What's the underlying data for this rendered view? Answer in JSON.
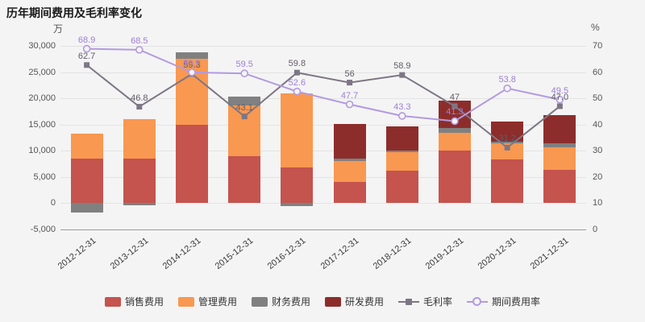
{
  "chart_data": {
    "type": "stacked-bar+line",
    "title": "历年期间费用及毛利率变化",
    "categories": [
      "2012-12-31",
      "2013-12-31",
      "2014-12-31",
      "2015-12-31",
      "2016-12-31",
      "2017-12-31",
      "2018-12-31",
      "2019-12-31",
      "2020-12-31",
      "2021-12-31"
    ],
    "left_axis": {
      "unit": "万",
      "min": -5000,
      "max": 30000,
      "ticks": [
        "30,000",
        "25,000",
        "20,000",
        "15,000",
        "10,000",
        "5,000",
        "0",
        "-5,000"
      ]
    },
    "right_axis": {
      "unit": "%",
      "min": 0,
      "max": 70,
      "ticks": [
        "70",
        "60",
        "50",
        "40",
        "30",
        "20",
        "10",
        "0"
      ]
    },
    "bar_series": [
      {
        "name": "销售费用",
        "color": "#c5534e",
        "values": [
          8500,
          8500,
          15000,
          9000,
          6800,
          4000,
          6200,
          10000,
          8400,
          6300
        ]
      },
      {
        "name": "管理费用",
        "color": "#f99850",
        "values": [
          4800,
          7500,
          12600,
          9700,
          14200,
          4100,
          3600,
          3400,
          3000,
          4300
        ]
      },
      {
        "name": "财务费用",
        "color": "#808080",
        "values": [
          -1800,
          -400,
          1200,
          1700,
          -600,
          400,
          200,
          900,
          400,
          900
        ]
      },
      {
        "name": "研发费用",
        "color": "#8d2d2b",
        "values": [
          0,
          0,
          0,
          0,
          0,
          6600,
          4700,
          5200,
          3700,
          5300
        ]
      }
    ],
    "line_series": [
      {
        "name": "毛利率",
        "marker": "square",
        "color": "#7d7684",
        "label_color": "#625c68",
        "values": [
          62.7,
          46.8,
          59.3,
          43.1,
          59.8,
          56,
          58.9,
          47,
          31.2,
          47
        ],
        "labels": [
          "62.7",
          "46.8",
          "59.3",
          "43.1",
          "59.8",
          "56",
          "58.9",
          "47",
          "31.2",
          "47.0"
        ]
      },
      {
        "name": "期间费用率",
        "marker": "circle",
        "color": "#b29ae0",
        "label_color": "#9d7fd6",
        "values": [
          68.9,
          68.5,
          59.9,
          59.5,
          52.6,
          47.7,
          43.3,
          41.3,
          53.8,
          49.5
        ],
        "labels": [
          "68.9",
          "68.5",
          "59.9",
          "59.5",
          "52.6",
          "47.7",
          "43.3",
          "41.3",
          "53.8",
          "49.5"
        ]
      }
    ]
  }
}
